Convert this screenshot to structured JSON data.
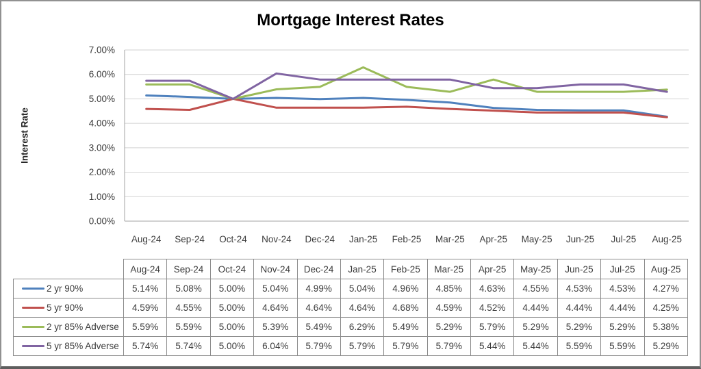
{
  "chart_data": {
    "type": "line",
    "title": "Mortgage Interest Rates",
    "xlabel": "",
    "ylabel": "Interest Rate",
    "ylim": [
      0,
      7
    ],
    "ytick_step": 1,
    "ytick_format": "0.00%",
    "grid": true,
    "legend_position": "data-table-left",
    "categories": [
      "Aug-24",
      "Sep-24",
      "Oct-24",
      "Nov-24",
      "Dec-24",
      "Jan-25",
      "Feb-25",
      "Mar-25",
      "Apr-25",
      "May-25",
      "Jun-25",
      "Jul-25",
      "Aug-25"
    ],
    "series": [
      {
        "name": "2 yr 90%",
        "color": "#4F81BD",
        "values": [
          5.14,
          5.08,
          5.0,
          5.04,
          4.99,
          5.04,
          4.96,
          4.85,
          4.63,
          4.55,
          4.53,
          4.53,
          4.27
        ]
      },
      {
        "name": "5 yr 90%",
        "color": "#C0504D",
        "values": [
          4.59,
          4.55,
          5.0,
          4.64,
          4.64,
          4.64,
          4.68,
          4.59,
          4.52,
          4.44,
          4.44,
          4.44,
          4.25
        ]
      },
      {
        "name": "2 yr 85% Adverse",
        "color": "#9BBB59",
        "values": [
          5.59,
          5.59,
          5.0,
          5.39,
          5.49,
          6.29,
          5.49,
          5.29,
          5.79,
          5.29,
          5.29,
          5.29,
          5.38
        ]
      },
      {
        "name": "5 yr 85% Adverse",
        "color": "#8064A2",
        "values": [
          5.74,
          5.74,
          5.0,
          6.04,
          5.79,
          5.79,
          5.79,
          5.79,
          5.44,
          5.44,
          5.59,
          5.59,
          5.29
        ]
      }
    ],
    "y_tick_labels": [
      "0.00%",
      "1.00%",
      "2.00%",
      "3.00%",
      "4.00%",
      "5.00%",
      "6.00%",
      "7.00%"
    ],
    "colors": {
      "gridline": "#d2d2d2",
      "axis_line": "#a3a3a3",
      "tick_text": "#3b3b3b",
      "table_border": "#8c8c8c",
      "title_text": "#000000"
    }
  }
}
